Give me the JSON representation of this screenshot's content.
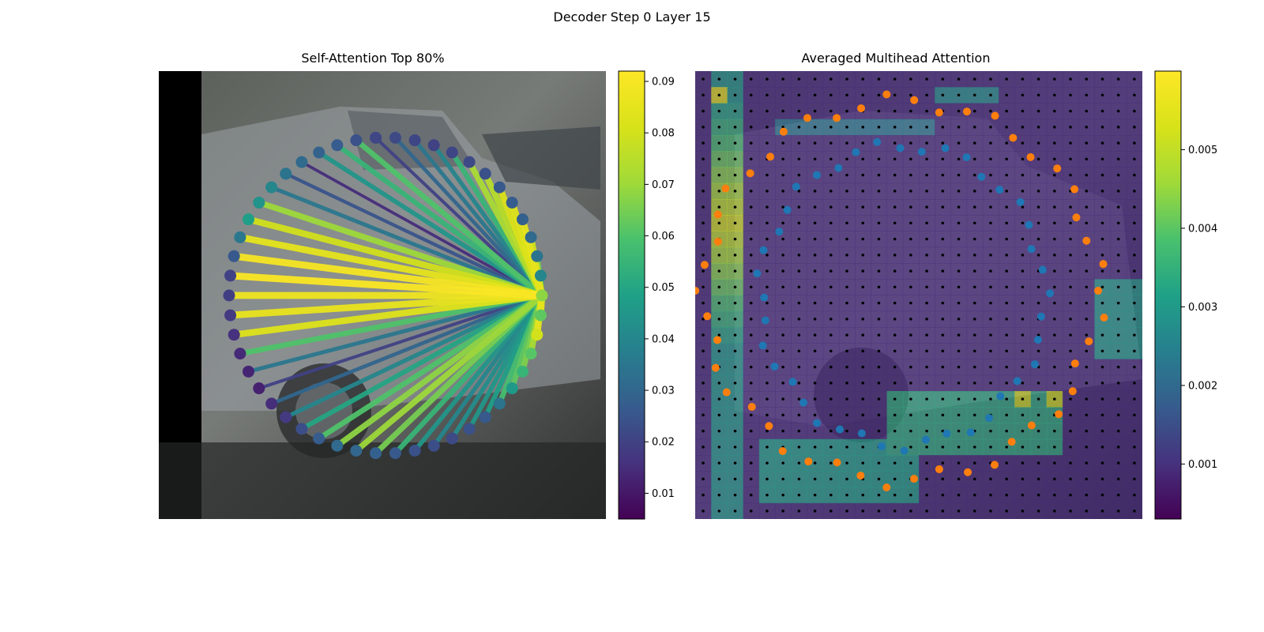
{
  "figure": {
    "title": "Decoder Step 0 Layer 15"
  },
  "chart_data": [
    {
      "type": "network",
      "title": "Self-Attention Top 80%",
      "colormap": "viridis",
      "colorbar": {
        "min": 0.005,
        "max": 0.092,
        "ticks": [
          0.01,
          0.02,
          0.03,
          0.04,
          0.05,
          0.06,
          0.07,
          0.08,
          0.09
        ]
      },
      "query_index": 0,
      "query_value": 0.068,
      "node_count": 50,
      "node_values": [
        0.068,
        0.04,
        0.034,
        0.031,
        0.028,
        0.027,
        0.026,
        0.024,
        0.022,
        0.021,
        0.02,
        0.021,
        0.022,
        0.021,
        0.024,
        0.027,
        0.029,
        0.031,
        0.034,
        0.04,
        0.044,
        0.048,
        0.035,
        0.026,
        0.02,
        0.019,
        0.018,
        0.016,
        0.014,
        0.013,
        0.012,
        0.015,
        0.018,
        0.023,
        0.027,
        0.031,
        0.03,
        0.028,
        0.026,
        0.024,
        0.023,
        0.022,
        0.024,
        0.026,
        0.034,
        0.046,
        0.055,
        0.061,
        0.08,
        0.062
      ],
      "edge_values": [
        0.0,
        0.05,
        0.065,
        0.08,
        0.085,
        0.083,
        0.082,
        0.075,
        0.072,
        0.055,
        0.04,
        0.035,
        0.03,
        0.02,
        0.06,
        0.055,
        0.045,
        0.015,
        0.025,
        0.035,
        0.07,
        0.08,
        0.085,
        0.09,
        0.091,
        0.088,
        0.086,
        0.083,
        0.06,
        0.035,
        0.02,
        0.03,
        0.04,
        0.05,
        0.06,
        0.068,
        0.07,
        0.065,
        0.055,
        0.045,
        0.04,
        0.042,
        0.045,
        0.048,
        0.058,
        0.062,
        0.066,
        0.072,
        0.085,
        0.082
      ]
    },
    {
      "type": "heatmap",
      "title": "Averaged Multihead Attention",
      "colormap": "viridis",
      "grid": {
        "rows": 28,
        "cols": 28
      },
      "colorbar": {
        "min": 0.0003,
        "max": 0.006,
        "ticks": [
          0.001,
          0.002,
          0.003,
          0.004,
          0.005
        ]
      },
      "value_range": [
        0.0003,
        0.006
      ],
      "series": [
        {
          "color": "#1f77b4",
          "points": 40
        },
        {
          "color": "#ff7f0e",
          "points": 46
        }
      ]
    }
  ]
}
